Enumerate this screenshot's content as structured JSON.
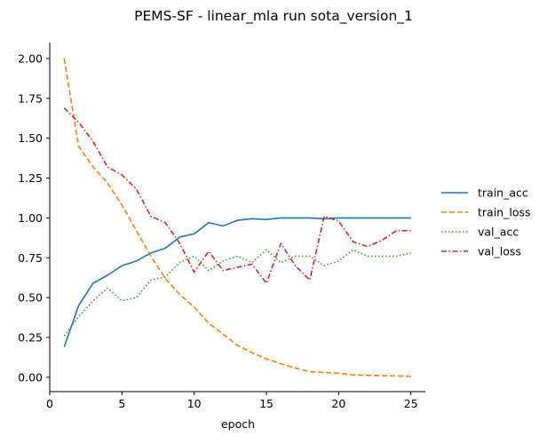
{
  "chart_data": {
    "type": "line",
    "title": "PEMS-SF - linear_mla run sota_version_1",
    "xlabel": "epoch",
    "ylabel": "",
    "xlim": [
      0,
      26
    ],
    "ylim": [
      -0.09,
      2.1
    ],
    "xticks": [
      0,
      5,
      10,
      15,
      20,
      25
    ],
    "yticks": [
      0.0,
      0.25,
      0.5,
      0.75,
      1.0,
      1.25,
      1.5,
      1.75,
      2.0
    ],
    "ytick_labels": [
      "0.00",
      "0.25",
      "0.50",
      "0.75",
      "1.00",
      "1.25",
      "1.50",
      "1.75",
      "2.00"
    ],
    "grid": false,
    "legend_position": "right",
    "x": [
      1,
      2,
      3,
      4,
      5,
      6,
      7,
      8,
      9,
      10,
      11,
      12,
      13,
      14,
      15,
      16,
      17,
      18,
      19,
      20,
      21,
      22,
      23,
      24,
      25
    ],
    "series": [
      {
        "name": "train_acc",
        "color": "#1f77b4",
        "dash": "solid",
        "values": [
          0.19,
          0.45,
          0.59,
          0.64,
          0.7,
          0.73,
          0.78,
          0.81,
          0.88,
          0.9,
          0.97,
          0.95,
          0.985,
          0.995,
          0.99,
          1.0,
          1.0,
          1.0,
          0.995,
          1.0,
          1.0,
          1.0,
          1.0,
          1.0,
          1.0
        ]
      },
      {
        "name": "train_loss",
        "color": "#ff7f0e",
        "dash": "dashed",
        "values": [
          2.0,
          1.45,
          1.32,
          1.22,
          1.08,
          0.92,
          0.76,
          0.62,
          0.52,
          0.44,
          0.34,
          0.27,
          0.2,
          0.155,
          0.115,
          0.085,
          0.058,
          0.035,
          0.03,
          0.025,
          0.015,
          0.012,
          0.01,
          0.008,
          0.006
        ]
      },
      {
        "name": "val_acc",
        "color": "#2ca02c",
        "dash": "dotted",
        "values": [
          0.26,
          0.38,
          0.48,
          0.56,
          0.48,
          0.5,
          0.61,
          0.63,
          0.72,
          0.76,
          0.67,
          0.73,
          0.76,
          0.72,
          0.8,
          0.72,
          0.76,
          0.76,
          0.7,
          0.73,
          0.8,
          0.76,
          0.76,
          0.76,
          0.78
        ]
      },
      {
        "name": "val_loss",
        "color": "#d62728",
        "dash": "dashdot",
        "values": [
          1.69,
          1.6,
          1.48,
          1.32,
          1.27,
          1.18,
          1.01,
          0.97,
          0.84,
          0.66,
          0.79,
          0.67,
          0.69,
          0.71,
          0.59,
          0.84,
          0.7,
          0.61,
          1.01,
          0.98,
          0.85,
          0.82,
          0.86,
          0.92,
          0.92
        ]
      }
    ]
  }
}
